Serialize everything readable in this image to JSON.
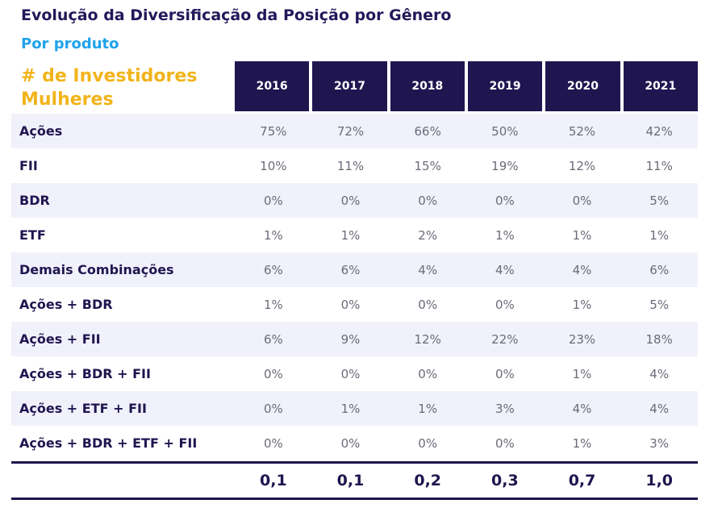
{
  "title": "Evolução da Diversificação da Posição por Gênero",
  "subtitle": "Por produto",
  "table": {
    "metric_label": "# de Investidores Mulheres",
    "years": [
      "2016",
      "2017",
      "2018",
      "2019",
      "2020",
      "2021"
    ],
    "rows": [
      {
        "label": "Ações",
        "values": [
          "75%",
          "72%",
          "66%",
          "50%",
          "52%",
          "42%"
        ]
      },
      {
        "label": "FII",
        "values": [
          "10%",
          "11%",
          "15%",
          "19%",
          "12%",
          "11%"
        ]
      },
      {
        "label": "BDR",
        "values": [
          "0%",
          "0%",
          "0%",
          "0%",
          "0%",
          "5%"
        ]
      },
      {
        "label": "ETF",
        "values": [
          "1%",
          "1%",
          "2%",
          "1%",
          "1%",
          "1%"
        ]
      },
      {
        "label": "Demais Combinações",
        "values": [
          "6%",
          "6%",
          "4%",
          "4%",
          "4%",
          "6%"
        ]
      },
      {
        "label": "Ações + BDR",
        "values": [
          "1%",
          "0%",
          "0%",
          "0%",
          "1%",
          "5%"
        ]
      },
      {
        "label": "Ações + FII",
        "values": [
          "6%",
          "9%",
          "12%",
          "22%",
          "23%",
          "18%"
        ]
      },
      {
        "label": "Ações + BDR + FII",
        "values": [
          "0%",
          "0%",
          "0%",
          "0%",
          "1%",
          "4%"
        ]
      },
      {
        "label": "Ações + ETF + FII",
        "values": [
          "0%",
          "1%",
          "1%",
          "3%",
          "4%",
          "4%"
        ]
      },
      {
        "label": "Ações + BDR + ETF + FII",
        "values": [
          "0%",
          "0%",
          "0%",
          "0%",
          "1%",
          "3%"
        ]
      }
    ],
    "totals": [
      "0,1",
      "0,1",
      "0,2",
      "0,3",
      "0,7",
      "1,0"
    ]
  },
  "colors": {
    "navy": "#1f1650",
    "blue_subtitle": "#1fa3ec",
    "gold_metric": "#f2b41b",
    "row_alt_bg": "#f1f1fb"
  }
}
